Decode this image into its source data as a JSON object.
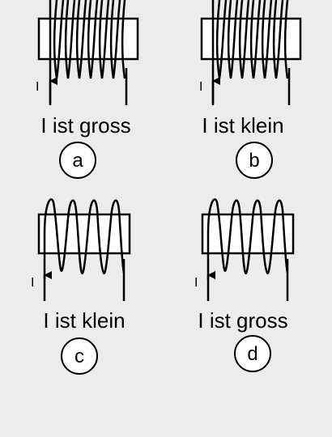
{
  "panels": [
    {
      "caption": "I ist gross",
      "letter": "a",
      "current_label": "I",
      "turns": "many",
      "current": "gross"
    },
    {
      "caption": "I ist klein",
      "letter": "b",
      "current_label": "I",
      "turns": "many",
      "current": "klein"
    },
    {
      "caption": "I ist klein",
      "letter": "c",
      "current_label": "I",
      "turns": "few",
      "current": "klein"
    },
    {
      "caption": "I ist gross",
      "letter": "d",
      "current_label": "I",
      "turns": "few",
      "current": "gross"
    }
  ]
}
